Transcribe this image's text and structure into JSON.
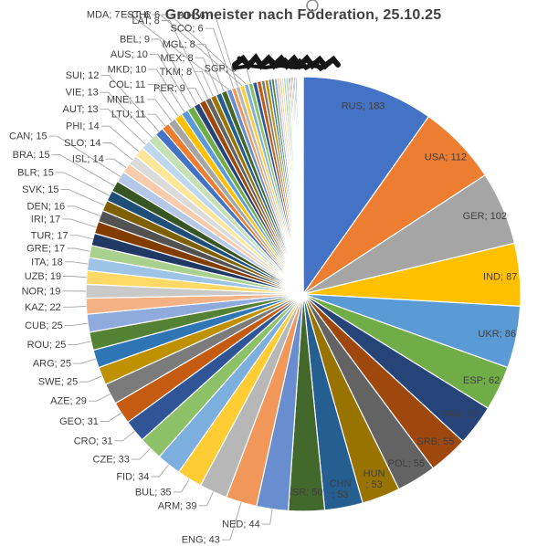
{
  "chart_data": {
    "type": "pie",
    "title": "Großmeister nach Föderation, 25.10.25",
    "label_format": "NAME; VALUE",
    "start_angle_deg": 0,
    "direction": "clockwise",
    "legend": "none",
    "inside_label_min_value": 50,
    "wrap_inside_labels": [
      "HUN",
      "CHN"
    ],
    "slices": [
      {
        "label": "RUS",
        "value": 183
      },
      {
        "label": "USA",
        "value": 112
      },
      {
        "label": "GER",
        "value": 102
      },
      {
        "label": "IND",
        "value": 87
      },
      {
        "label": "UKR",
        "value": 86
      },
      {
        "label": "ESP",
        "value": 62
      },
      {
        "label": "FRA",
        "value": 57
      },
      {
        "label": "SRB",
        "value": 55
      },
      {
        "label": "POL",
        "value": 55
      },
      {
        "label": "HUN",
        "value": 53
      },
      {
        "label": "CHN",
        "value": 53
      },
      {
        "label": "ISR",
        "value": 50
      },
      {
        "label": "NED",
        "value": 44
      },
      {
        "label": "ENG",
        "value": 43
      },
      {
        "label": "ARM",
        "value": 39
      },
      {
        "label": "BUL",
        "value": 35
      },
      {
        "label": "FID",
        "value": 34
      },
      {
        "label": "CZE",
        "value": 33
      },
      {
        "label": "CRO",
        "value": 31
      },
      {
        "label": "GEO",
        "value": 31
      },
      {
        "label": "AZE",
        "value": 29
      },
      {
        "label": "SWE",
        "value": 25
      },
      {
        "label": "ARG",
        "value": 25
      },
      {
        "label": "ROU",
        "value": 25
      },
      {
        "label": "CUB",
        "value": 25
      },
      {
        "label": "KAZ",
        "value": 22
      },
      {
        "label": "NOR",
        "value": 19
      },
      {
        "label": "UZB",
        "value": 19
      },
      {
        "label": "ITA",
        "value": 18
      },
      {
        "label": "GRE",
        "value": 17
      },
      {
        "label": "TUR",
        "value": 17
      },
      {
        "label": "IRI",
        "value": 17
      },
      {
        "label": "DEN",
        "value": 16
      },
      {
        "label": "SVK",
        "value": 15
      },
      {
        "label": "BLR",
        "value": 15
      },
      {
        "label": "BRA",
        "value": 15
      },
      {
        "label": "CAN",
        "value": 15
      },
      {
        "label": "ISL",
        "value": 14
      },
      {
        "label": "SLO",
        "value": 14
      },
      {
        "label": "PHI",
        "value": 14
      },
      {
        "label": "AUT",
        "value": 13
      },
      {
        "label": "VIE",
        "value": 13
      },
      {
        "label": "SUI",
        "value": 12
      },
      {
        "label": "LTU",
        "value": 11
      },
      {
        "label": "MNE",
        "value": 11
      },
      {
        "label": "COL",
        "value": 11
      },
      {
        "label": "MKD",
        "value": 10
      },
      {
        "label": "AUS",
        "value": 10
      },
      {
        "label": "BEL",
        "value": 9
      },
      {
        "label": "PER",
        "value": 9
      },
      {
        "label": "LAT",
        "value": 8
      },
      {
        "label": "TKM",
        "value": 8
      },
      {
        "label": "MEX",
        "value": 8
      },
      {
        "label": "MGL",
        "value": 8
      },
      {
        "label": "MDA",
        "value": 7
      },
      {
        "label": "SCO",
        "value": 6
      },
      {
        "label": "BIH",
        "value": 6
      },
      {
        "label": "EST",
        "value": 6
      },
      {
        "label": "CHI",
        "value": 6
      },
      {
        "label": "SGP",
        "value": 6
      }
    ],
    "unlabeled_remainder": {
      "description": "many unlabeled thin slivers before 12 o'clock; several of their labels are scribbled out in black",
      "values": [
        6,
        6,
        5,
        5,
        4,
        4,
        4,
        3,
        3,
        3,
        3,
        3,
        2,
        2,
        2,
        2,
        2,
        2,
        2,
        1,
        1,
        1,
        1,
        1,
        1,
        1
      ]
    },
    "palette": [
      "#4472C4",
      "#ED7D31",
      "#A5A5A5",
      "#FFC000",
      "#5B9BD5",
      "#70AD47",
      "#264478",
      "#9E480E",
      "#636363",
      "#997300",
      "#255E91",
      "#43682B",
      "#698ED0",
      "#F1975A",
      "#B7B7B7",
      "#FFCD33",
      "#7CAFDD",
      "#8CC168",
      "#2F5597",
      "#C55A11",
      "#7B7B7B",
      "#BF9000",
      "#2E75B6",
      "#548235",
      "#8FAADC",
      "#F4B183",
      "#C9C9C9",
      "#FFD966",
      "#9DC3E6",
      "#A9D18E",
      "#1F3864",
      "#833C00",
      "#525252",
      "#7F6000",
      "#1F4E79",
      "#375623",
      "#B4C7E7",
      "#F8CBAD",
      "#DBDBDB",
      "#FFE699",
      "#BDD7EE",
      "#C5E0B4"
    ],
    "style": {
      "label_color": "#404040",
      "leader_color": "#A6A6A6",
      "slice_stroke": "#FFFFFF",
      "title_color": "#404040"
    }
  },
  "annotations": {
    "redaction_scribble": {
      "color": "#161616",
      "note": "hand-drawn blackout covering several small federation labels"
    },
    "top_circle": {
      "color": "#909090"
    }
  }
}
